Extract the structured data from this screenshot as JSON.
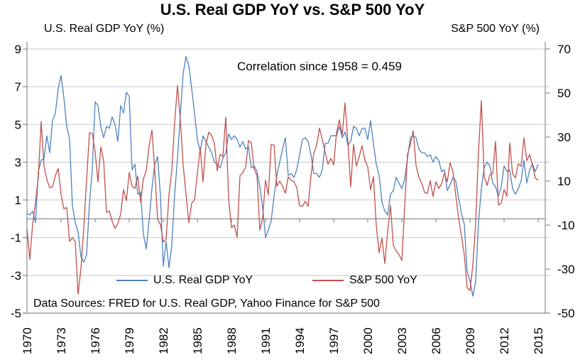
{
  "title": "U.S. Real GDP YoY vs. S&P 500 YoY",
  "left_axis_title": "U.S. Real GDP YoY (%)",
  "right_axis_title": "S&P 500 YoY (%)",
  "annotation": "Correlation since 1958 = 0.459",
  "footer": "Data Sources: FRED for U.S. Real GDP, Yahoo Finance for S&P 500",
  "legend": [
    {
      "label": "U.S. Real GDP YoY",
      "color": "#4F81BD"
    },
    {
      "label": "S&P 500 YoY",
      "color": "#C0504D"
    }
  ],
  "colors": {
    "gridline": "#C9C9C9",
    "axis": "#8C8C8C",
    "text": "#000000",
    "background": "#FFFFFF"
  },
  "chart_data": {
    "type": "line",
    "frequency": "quarterly",
    "x_start": "1970 Q1",
    "x_end": "2015 Q1",
    "x_tick_labels": [
      "1970",
      "1973",
      "1976",
      "1979",
      "1982",
      "1985",
      "1988",
      "1991",
      "1994",
      "1997",
      "2000",
      "2003",
      "2006",
      "2009",
      "2012",
      "2015"
    ],
    "left_axis": {
      "label": "U.S. Real GDP YoY (%)",
      "min": -5,
      "max": 9,
      "ticks": [
        9,
        7,
        5,
        3,
        1,
        -1,
        -3,
        -5
      ]
    },
    "right_axis": {
      "label": "S&P 500 YoY (%)",
      "min": -50,
      "max": 70,
      "ticks": [
        70,
        50,
        30,
        10,
        -10,
        -30,
        -50
      ]
    },
    "grid": true,
    "legend_position": "inside-bottom",
    "series": [
      {
        "name": "U.S. Real GDP YoY",
        "axis": "left",
        "color": "#4F81BD",
        "values": [
          0.3,
          0.2,
          0.4,
          -0.2,
          2.5,
          3.1,
          3.2,
          4.4,
          3.5,
          5.2,
          5.6,
          6.9,
          7.6,
          6.4,
          4.9,
          4.2,
          0.7,
          -0.2,
          -0.7,
          -2.0,
          -2.3,
          -1.9,
          0.8,
          2.6,
          6.2,
          6.0,
          4.9,
          4.3,
          4.9,
          4.8,
          5.4,
          5.0,
          4.1,
          6.0,
          5.6,
          6.7,
          6.5,
          2.6,
          2.9,
          1.3,
          1.4,
          -0.8,
          -1.6,
          -0.1,
          1.6,
          2.9,
          3.3,
          1.2,
          -2.5,
          -1.2,
          -2.6,
          -1.4,
          1.3,
          3.2,
          5.5,
          7.7,
          8.6,
          8.1,
          6.9,
          5.6,
          4.2,
          3.6,
          4.4,
          4.1,
          3.8,
          3.5,
          3.0,
          2.9,
          2.7,
          3.2,
          3.5,
          4.5,
          4.2,
          4.4,
          4.2,
          3.8,
          4.1,
          3.7,
          3.8,
          2.7,
          2.8,
          2.5,
          1.7,
          0.6,
          -1.0,
          -0.6,
          -0.1,
          1.2,
          2.3,
          3.0,
          3.7,
          4.3,
          2.3,
          2.4,
          2.2,
          2.6,
          3.4,
          4.2,
          4.3,
          4.1,
          3.4,
          2.4,
          2.4,
          2.2,
          2.6,
          4.0,
          4.0,
          4.4,
          4.4,
          4.4,
          4.9,
          4.3,
          4.6,
          3.9,
          4.1,
          4.9,
          4.8,
          4.4,
          4.8,
          4.8,
          4.2,
          5.2,
          4.0,
          2.9,
          2.3,
          0.9,
          0.4,
          0.2,
          1.3,
          1.5,
          2.2,
          1.9,
          1.6,
          2.1,
          3.2,
          4.3,
          4.4,
          4.3,
          3.7,
          3.5,
          3.5,
          3.3,
          3.4,
          3.0,
          3.3,
          3.1,
          2.5,
          2.6,
          1.5,
          1.8,
          2.2,
          2.0,
          1.1,
          0.3,
          -0.3,
          -2.8,
          -3.3,
          -4.1,
          -3.3,
          -0.2,
          1.6,
          2.7,
          3.0,
          2.8,
          1.9,
          1.7,
          1.2,
          1.7,
          2.8,
          2.5,
          2.6,
          1.6,
          1.3,
          1.6,
          2.0,
          3.1,
          1.9,
          2.6,
          2.9,
          2.5,
          2.9
        ]
      },
      {
        "name": "S&P 500 YoY",
        "axis": "right",
        "color": "#C0504D",
        "values": [
          -11.7,
          -25.6,
          -9.6,
          0.1,
          11.9,
          37.1,
          16.8,
          10.7,
          6.9,
          7.4,
          12.5,
          15.7,
          4.0,
          -2.6,
          -2.0,
          -17.4,
          -15.7,
          -17.5,
          -41.4,
          -29.7,
          -11.3,
          10.7,
          32.0,
          31.5,
          23.3,
          9.6,
          25.5,
          19.2,
          -4.2,
          -3.6,
          -8.3,
          -11.5,
          -9.3,
          -5.0,
          6.2,
          1.1,
          13.9,
          7.7,
          6.6,
          12.3,
          0.5,
          11.0,
          14.8,
          25.8,
          33.2,
          14.9,
          -7.4,
          -9.7,
          -17.7,
          -16.5,
          3.7,
          14.8,
          36.6,
          53.4,
          37.9,
          17.3,
          4.1,
          -8.9,
          0.0,
          1.4,
          13.5,
          25.2,
          9.6,
          26.4,
          32.2,
          30.8,
          27.0,
          14.6,
          22.1,
          21.2,
          39.1,
          2.0,
          -11.2,
          -10.0,
          -15.5,
          12.4,
          13.9,
          16.3,
          28.4,
          27.3,
          15.3,
          12.6,
          -12.3,
          -6.6,
          10.4,
          3.7,
          26.7,
          26.3,
          7.6,
          10.0,
          7.7,
          4.5,
          11.9,
          10.4,
          9.8,
          7.1,
          -1.3,
          -1.4,
          0.8,
          -1.5,
          12.3,
          22.6,
          26.3,
          34.1,
          28.9,
          23.1,
          17.6,
          20.3,
          17.3,
          32.0,
          37.8,
          31.0,
          45.5,
          28.1,
          7.4,
          26.7,
          16.8,
          21.1,
          26.1,
          19.5,
          16.5,
          6.0,
          12.0,
          -10.1,
          -22.6,
          -15.8,
          -27.5,
          -13.0,
          -1.1,
          -19.2,
          -21.7,
          -23.4,
          -26.1,
          -1.5,
          22.2,
          26.4,
          32.8,
          17.1,
          11.9,
          9.0,
          4.8,
          4.4,
          10.2,
          3.0,
          9.7,
          6.6,
          8.7,
          13.6,
          9.7,
          18.4,
          14.3,
          3.5,
          -6.9,
          -14.9,
          -23.6,
          -38.5,
          -39.7,
          -28.2,
          -9.4,
          23.5,
          46.6,
          12.1,
          8.0,
          12.8,
          13.4,
          28.1,
          -0.9,
          0.0,
          6.2,
          3.1,
          27.3,
          13.4,
          11.4,
          17.9,
          16.7,
          29.6,
          19.3,
          22.0,
          17.3,
          11.4,
          10.4
        ]
      }
    ]
  }
}
